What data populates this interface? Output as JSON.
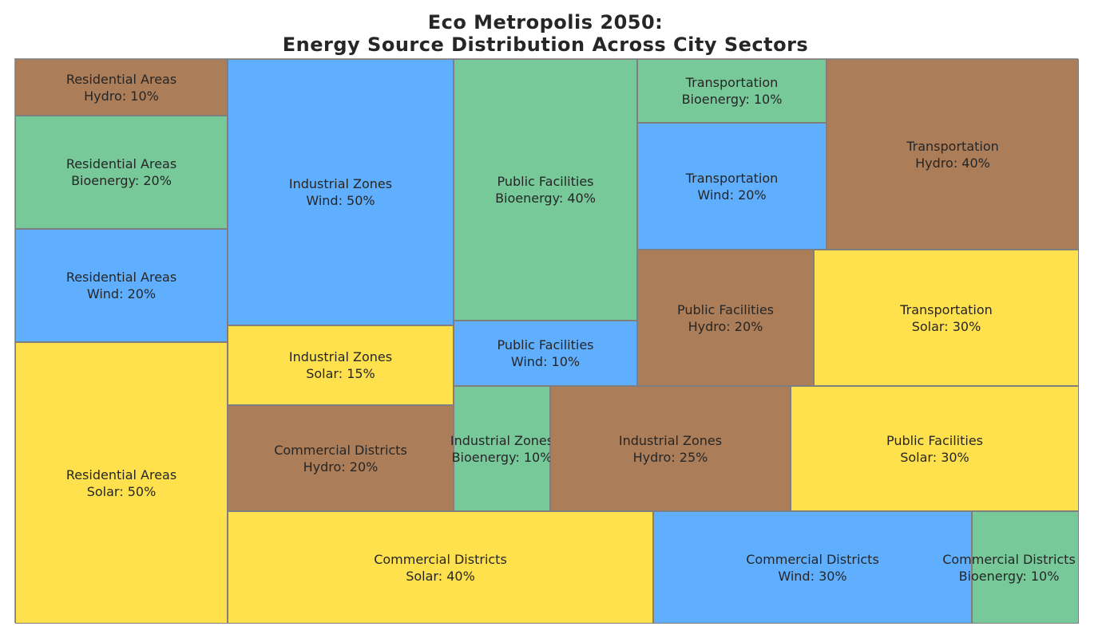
{
  "chart_data": {
    "type": "treemap",
    "title_lines": [
      "Eco Metropolis 2050:",
      "Energy Source Distribution Across City Sectors"
    ],
    "colors": {
      "Solar": "#FFE14D",
      "Wind": "#60AFFE",
      "Hydro": "#AB7D59",
      "Bioenergy": "#77C99A"
    },
    "cells": [
      {
        "sector": "Residential Areas",
        "source": "Hydro",
        "value": 10,
        "text": "Hydro: 10%"
      },
      {
        "sector": "Residential Areas",
        "source": "Bioenergy",
        "value": 20,
        "text": "Bioenergy: 20%"
      },
      {
        "sector": "Residential Areas",
        "source": "Wind",
        "value": 20,
        "text": "Wind: 20%"
      },
      {
        "sector": "Residential Areas",
        "source": "Solar",
        "value": 50,
        "text": "Solar: 50%"
      },
      {
        "sector": "Industrial Zones",
        "source": "Wind",
        "value": 50,
        "text": "Wind: 50%"
      },
      {
        "sector": "Industrial Zones",
        "source": "Solar",
        "value": 15,
        "text": "Solar: 15%"
      },
      {
        "sector": "Commercial Districts",
        "source": "Hydro",
        "value": 20,
        "text": "Hydro: 20%"
      },
      {
        "sector": "Commercial Districts",
        "source": "Solar",
        "value": 40,
        "text": "Solar: 40%"
      },
      {
        "sector": "Public Facilities",
        "source": "Bioenergy",
        "value": 40,
        "text": "Bioenergy: 40%"
      },
      {
        "sector": "Public Facilities",
        "source": "Wind",
        "value": 10,
        "text": "Wind: 10%"
      },
      {
        "sector": "Industrial Zones",
        "source": "Bioenergy",
        "value": 10,
        "text": "Bioenergy: 10%"
      },
      {
        "sector": "Industrial Zones",
        "source": "Hydro",
        "value": 25,
        "text": "Hydro: 25%"
      },
      {
        "sector": "Transportation",
        "source": "Bioenergy",
        "value": 10,
        "text": "Bioenergy: 10%"
      },
      {
        "sector": "Transportation",
        "source": "Wind",
        "value": 20,
        "text": "Wind: 20%"
      },
      {
        "sector": "Transportation",
        "source": "Hydro",
        "value": 40,
        "text": "Hydro: 40%"
      },
      {
        "sector": "Public Facilities",
        "source": "Hydro",
        "value": 20,
        "text": "Hydro: 20%"
      },
      {
        "sector": "Transportation",
        "source": "Solar",
        "value": 30,
        "text": "Solar: 30%"
      },
      {
        "sector": "Public Facilities",
        "source": "Solar",
        "value": 30,
        "text": "Solar: 30%"
      },
      {
        "sector": "Commercial Districts",
        "source": "Wind",
        "value": 30,
        "text": "Wind: 30%"
      },
      {
        "sector": "Commercial Districts",
        "source": "Bioenergy",
        "value": 10,
        "text": "Bioenergy: 10%"
      }
    ]
  }
}
